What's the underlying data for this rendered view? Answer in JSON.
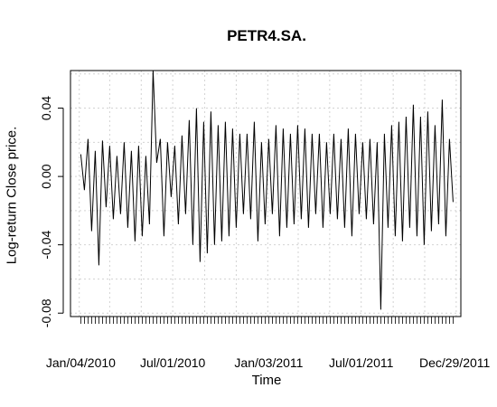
{
  "chart_data": {
    "type": "line",
    "title": "PETR4.SA.",
    "xlabel": "Time",
    "ylabel": "Log-return Close price.",
    "xlim": [
      "2009-12-15",
      "2012-01-10"
    ],
    "ylim": [
      -0.082,
      0.062
    ],
    "y_ticks": [
      -0.08,
      -0.04,
      0.0,
      0.04
    ],
    "y_tick_labels": [
      "-0.08",
      "-0.04",
      "0.00",
      "0.04"
    ],
    "x_ticks": [
      "2010-01-04",
      "2010-07-01",
      "2011-01-03",
      "2011-07-01",
      "2011-12-29"
    ],
    "x_tick_labels": [
      "Jan/04/2010",
      "Jul/01/2010",
      "Jan/03/2011",
      "Jul/01/2011",
      "Dec/29/2011"
    ],
    "grid": true,
    "colors": {
      "line": "#000000",
      "grid": "#d3d3d3",
      "axis": "#000000"
    },
    "series": [
      {
        "x": [
          "2010-01-04",
          "2010-01-11",
          "2010-01-18",
          "2010-01-25",
          "2010-02-01",
          "2010-02-08",
          "2010-02-15",
          "2010-02-22",
          "2010-03-01",
          "2010-03-08",
          "2010-03-15",
          "2010-03-22",
          "2010-03-29",
          "2010-04-05",
          "2010-04-12",
          "2010-04-19",
          "2010-04-26",
          "2010-05-03",
          "2010-05-10",
          "2010-05-17",
          "2010-05-24",
          "2010-05-31",
          "2010-06-07",
          "2010-06-14",
          "2010-06-21",
          "2010-06-28",
          "2010-07-05",
          "2010-07-12",
          "2010-07-19",
          "2010-07-26",
          "2010-08-02",
          "2010-08-09",
          "2010-08-16",
          "2010-08-23",
          "2010-08-30",
          "2010-09-06",
          "2010-09-13",
          "2010-09-20",
          "2010-09-27",
          "2010-10-04",
          "2010-10-11",
          "2010-10-18",
          "2010-10-25",
          "2010-11-01",
          "2010-11-08",
          "2010-11-15",
          "2010-11-22",
          "2010-11-29",
          "2010-12-06",
          "2010-12-13",
          "2010-12-20",
          "2010-12-27",
          "2011-01-03",
          "2011-01-10",
          "2011-01-17",
          "2011-01-24",
          "2011-01-31",
          "2011-02-07",
          "2011-02-14",
          "2011-02-21",
          "2011-02-28",
          "2011-03-07",
          "2011-03-14",
          "2011-03-21",
          "2011-03-28",
          "2011-04-04",
          "2011-04-11",
          "2011-04-18",
          "2011-04-25",
          "2011-05-02",
          "2011-05-09",
          "2011-05-16",
          "2011-05-23",
          "2011-05-30",
          "2011-06-06",
          "2011-06-13",
          "2011-06-20",
          "2011-06-27",
          "2011-07-04",
          "2011-07-11",
          "2011-07-18",
          "2011-07-25",
          "2011-08-01",
          "2011-08-08",
          "2011-08-15",
          "2011-08-22",
          "2011-08-29",
          "2011-09-05",
          "2011-09-12",
          "2011-09-19",
          "2011-09-26",
          "2011-10-03",
          "2011-10-10",
          "2011-10-17",
          "2011-10-24",
          "2011-10-31",
          "2011-11-07",
          "2011-11-14",
          "2011-11-21",
          "2011-11-28",
          "2011-12-05",
          "2011-12-12",
          "2011-12-19",
          "2011-12-26"
        ],
        "y": [
          0.013,
          -0.008,
          0.022,
          -0.032,
          0.015,
          -0.052,
          0.021,
          -0.018,
          0.018,
          -0.025,
          0.012,
          -0.022,
          0.02,
          -0.03,
          0.015,
          -0.038,
          0.018,
          -0.035,
          0.012,
          -0.028,
          0.062,
          0.008,
          0.022,
          -0.035,
          0.02,
          -0.012,
          0.018,
          -0.028,
          0.024,
          -0.022,
          0.033,
          -0.04,
          0.04,
          -0.05,
          0.032,
          -0.045,
          0.038,
          -0.04,
          0.03,
          -0.038,
          0.032,
          -0.035,
          0.028,
          -0.03,
          0.025,
          -0.022,
          0.025,
          -0.025,
          0.032,
          -0.038,
          0.02,
          -0.028,
          0.022,
          -0.022,
          0.03,
          -0.035,
          0.028,
          -0.03,
          0.025,
          -0.028,
          0.03,
          -0.025,
          0.028,
          -0.03,
          0.025,
          -0.022,
          0.025,
          -0.03,
          0.02,
          -0.022,
          0.025,
          -0.025,
          0.022,
          -0.03,
          0.028,
          -0.035,
          0.025,
          -0.022,
          0.02,
          -0.025,
          0.022,
          -0.028,
          0.02,
          -0.078,
          0.025,
          -0.03,
          0.03,
          -0.035,
          0.032,
          -0.038,
          0.035,
          -0.03,
          0.042,
          -0.035,
          0.035,
          -0.04,
          0.038,
          -0.032,
          0.03,
          -0.028,
          0.045,
          -0.035,
          0.022,
          -0.015
        ]
      }
    ]
  }
}
